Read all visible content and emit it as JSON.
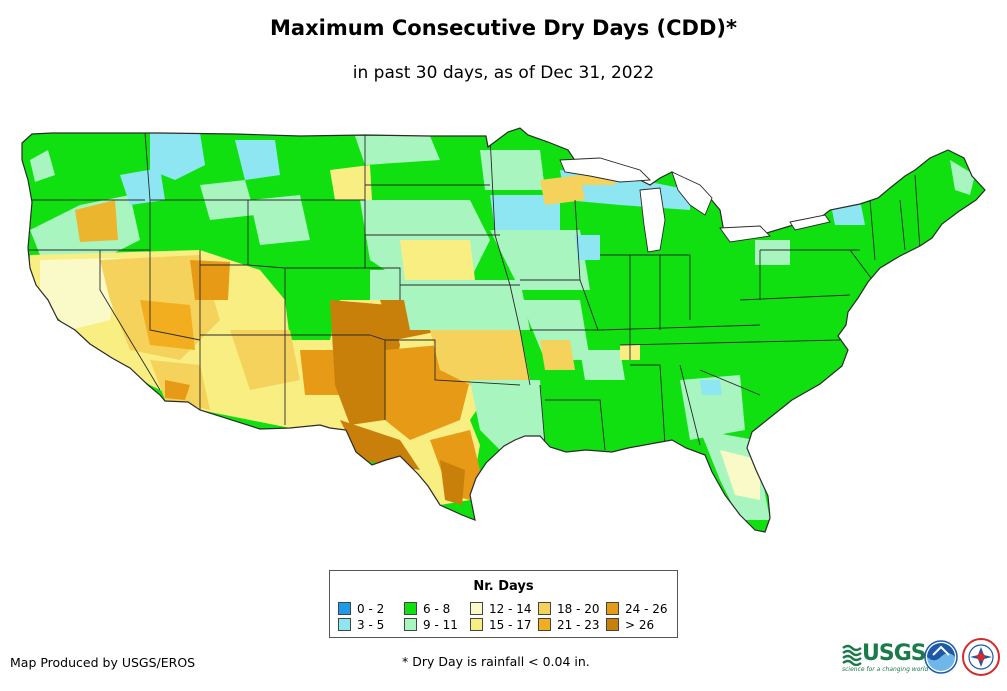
{
  "title": "Maximum Consecutive Dry Days (CDD)*",
  "subtitle": "in past 30 days, as of Dec 31, 2022",
  "legend": {
    "title": "Nr. Days",
    "items": [
      {
        "label": "0 - 2",
        "color": "#1e9be6"
      },
      {
        "label": "3 - 5",
        "color": "#8ee6f2"
      },
      {
        "label": "6 - 8",
        "color": "#10e010"
      },
      {
        "label": "9 - 11",
        "color": "#a8f5c0"
      },
      {
        "label": "12 - 14",
        "color": "#fafac8"
      },
      {
        "label": "15 - 17",
        "color": "#f8ee82"
      },
      {
        "label": "18 - 20",
        "color": "#f5d25c"
      },
      {
        "label": "21 - 23",
        "color": "#f2ae1e"
      },
      {
        "label": "24 - 26",
        "color": "#e69a16"
      },
      {
        "label": "> 26",
        "color": "#c8800a"
      }
    ]
  },
  "footer": {
    "producer": "Map Produced by USGS/EROS",
    "note": "* Dry Day is rainfall < 0.04 in."
  },
  "logos": {
    "usgs_text": "USGS",
    "usgs_tagline": "science for a changing world"
  },
  "colors": {
    "usgs_green": "#1a7a4a",
    "noaa_blue": "#1c5aa8",
    "nws_red": "#d42a2a",
    "state_border": "#2a2a2a"
  }
}
